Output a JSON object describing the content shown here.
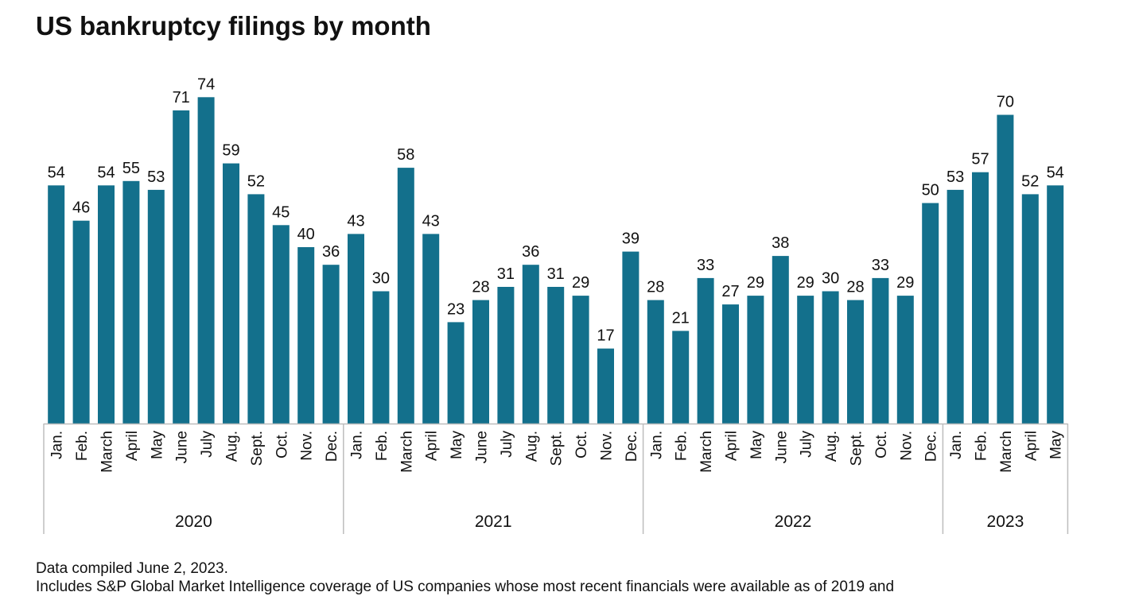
{
  "title": "US bankruptcy filings by month",
  "footnote": "Data compiled June 2, 2023.",
  "footnote2": "Includes S&P Global Market Intelligence coverage of US companies whose most recent financials were available as of 2019 and",
  "colors": {
    "bar": "#13708c",
    "axis": "#bdbdbd",
    "text": "#111111"
  },
  "chart_data": {
    "type": "bar",
    "title": "US bankruptcy filings by month",
    "xlabel": "",
    "ylabel": "",
    "ylim": [
      0,
      80
    ],
    "grid": false,
    "groups": [
      {
        "year": "2020",
        "months": [
          "Jan.",
          "Feb.",
          "March",
          "April",
          "May",
          "June",
          "July",
          "Aug.",
          "Sept.",
          "Oct.",
          "Nov.",
          "Dec."
        ],
        "values": [
          54,
          46,
          54,
          55,
          53,
          71,
          74,
          59,
          52,
          45,
          40,
          36
        ]
      },
      {
        "year": "2021",
        "months": [
          "Jan.",
          "Feb.",
          "March",
          "April",
          "May",
          "June",
          "July",
          "Aug.",
          "Sept.",
          "Oct.",
          "Nov.",
          "Dec."
        ],
        "values": [
          43,
          30,
          58,
          43,
          23,
          28,
          31,
          36,
          31,
          29,
          17,
          39
        ]
      },
      {
        "year": "2022",
        "months": [
          "Jan.",
          "Feb.",
          "March",
          "April",
          "May",
          "June",
          "July",
          "Aug.",
          "Sept.",
          "Oct.",
          "Nov.",
          "Dec."
        ],
        "values": [
          28,
          21,
          33,
          27,
          29,
          38,
          29,
          30,
          28,
          33,
          29,
          50
        ]
      },
      {
        "year": "2023",
        "months": [
          "Jan.",
          "Feb.",
          "March",
          "April",
          "May"
        ],
        "values": [
          53,
          57,
          70,
          52,
          54
        ]
      }
    ]
  }
}
